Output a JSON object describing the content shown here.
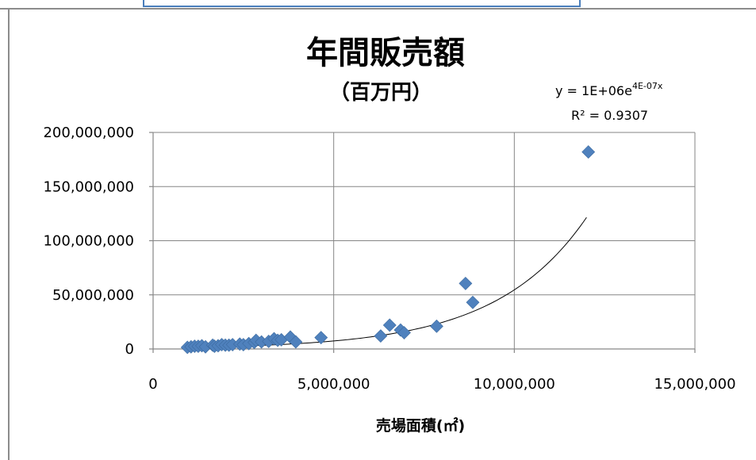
{
  "chart_data": {
    "type": "scatter",
    "title": "年間販売額",
    "subtitle": "（百万円）",
    "xlabel": "売場面積(㎡)",
    "ylabel": "",
    "xlim": [
      0,
      15000000
    ],
    "ylim": [
      0,
      200000000
    ],
    "x_ticks": [
      "0",
      "5,000,000",
      "10,000,000",
      "15,000,000"
    ],
    "y_ticks": [
      "0",
      "50,000,000",
      "100,000,000",
      "150,000,000",
      "200,000,000"
    ],
    "grid": true,
    "legend": "none",
    "colors": {
      "points": "#4f81bd",
      "trendline": "#000000"
    },
    "trendline": {
      "type": "exponential",
      "a": 1000000,
      "b": 4e-07,
      "equation": "y = 1E+06e",
      "equation_exponent": "4E-07x",
      "r2_label": "R² = 0.9307"
    },
    "series": [
      {
        "x": [
          950000,
          1050000,
          1150000,
          1250000,
          1350000,
          1450000,
          1650000,
          1700000,
          1800000,
          1900000,
          2000000,
          2100000,
          2200000,
          2400000,
          2500000,
          2650000,
          2800000,
          2850000,
          3000000,
          3200000,
          3350000,
          3450000,
          3550000,
          3800000,
          3950000,
          4650000,
          6300000,
          6550000,
          6850000,
          6950000,
          7850000,
          8650000,
          8850000,
          12050000
        ],
        "y": [
          1500000,
          2000000,
          2500000,
          2500000,
          3000000,
          2000000,
          3500000,
          2500000,
          3000000,
          4000000,
          3500000,
          3500000,
          4000000,
          4500000,
          4000000,
          5000000,
          6000000,
          8000000,
          6500000,
          7000000,
          9500000,
          8000000,
          8500000,
          11000000,
          6500000,
          10500000,
          12000000,
          22000000,
          17500000,
          15000000,
          21000000,
          60500000,
          43000000,
          182000000
        ]
      }
    ]
  }
}
